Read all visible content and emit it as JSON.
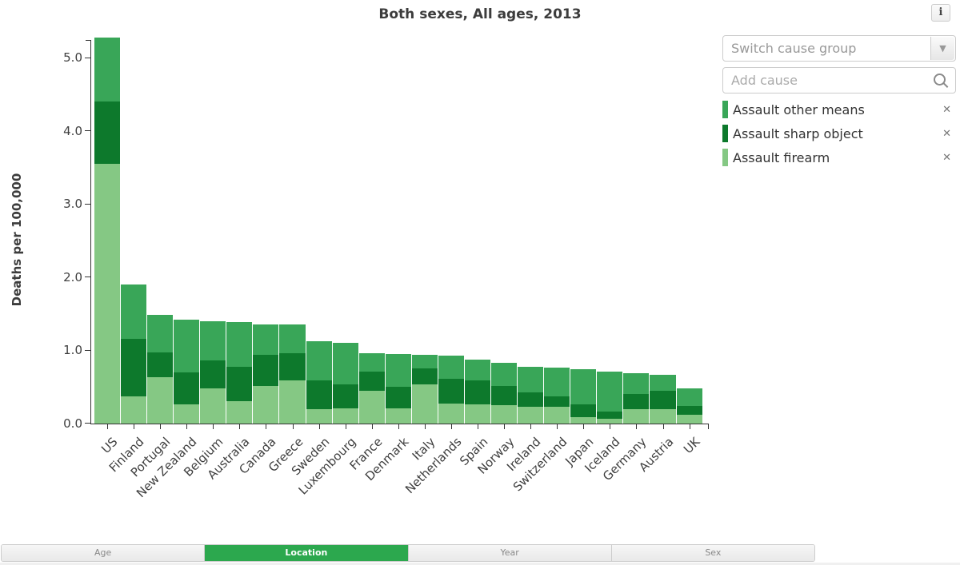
{
  "icons": {
    "info": "i",
    "dropdown_chevron": "▼",
    "remove": "✕",
    "search": "magnifier"
  },
  "panel": {
    "switch_label": "Switch cause group",
    "search_placeholder": "Add cause",
    "search_value": "",
    "legend": [
      {
        "label": "Assault other means",
        "color": "#39a658"
      },
      {
        "label": "Assault sharp object",
        "color": "#0d792c"
      },
      {
        "label": "Assault firearm",
        "color": "#85c884"
      }
    ]
  },
  "tabs": [
    {
      "label": "Age",
      "active": false
    },
    {
      "label": "Location",
      "active": true
    },
    {
      "label": "Year",
      "active": false
    },
    {
      "label": "Sex",
      "active": false
    }
  ],
  "accent_color": "#2ca84e",
  "chart_data": {
    "type": "bar",
    "stacked": true,
    "title": "Both sexes, All ages, 2013",
    "xlabel": "",
    "ylabel": "Deaths per 100,000",
    "ylim": [
      0,
      5.3
    ],
    "yticks": [
      "0.0",
      "1.0",
      "2.0",
      "3.0",
      "4.0",
      "5.0"
    ],
    "grid": false,
    "legend_position": "right-panel",
    "categories": [
      "US",
      "Finland",
      "Portugal",
      "New Zealand",
      "Belgium",
      "Australia",
      "Canada",
      "Greece",
      "Sweden",
      "Luxembourg",
      "France",
      "Denmark",
      "Italy",
      "Netherlands",
      "Spain",
      "Norway",
      "Ireland",
      "Switzerland",
      "Japan",
      "Iceland",
      "Germany",
      "Austria",
      "UK"
    ],
    "series": [
      {
        "name": "Assault firearm",
        "color": "#85c884",
        "values": [
          3.55,
          0.37,
          0.63,
          0.26,
          0.48,
          0.3,
          0.51,
          0.58,
          0.19,
          0.2,
          0.44,
          0.2,
          0.53,
          0.27,
          0.26,
          0.25,
          0.22,
          0.22,
          0.08,
          0.06,
          0.19,
          0.19,
          0.11
        ]
      },
      {
        "name": "Assault sharp object",
        "color": "#0d792c",
        "values": [
          0.85,
          0.78,
          0.34,
          0.43,
          0.38,
          0.47,
          0.42,
          0.38,
          0.4,
          0.33,
          0.26,
          0.3,
          0.22,
          0.34,
          0.33,
          0.26,
          0.2,
          0.15,
          0.18,
          0.1,
          0.21,
          0.25,
          0.13
        ]
      },
      {
        "name": "Assault other means",
        "color": "#39a658",
        "values": [
          0.87,
          0.75,
          0.51,
          0.73,
          0.53,
          0.61,
          0.42,
          0.39,
          0.53,
          0.57,
          0.26,
          0.45,
          0.18,
          0.31,
          0.28,
          0.32,
          0.35,
          0.39,
          0.48,
          0.54,
          0.28,
          0.22,
          0.24
        ]
      }
    ]
  }
}
